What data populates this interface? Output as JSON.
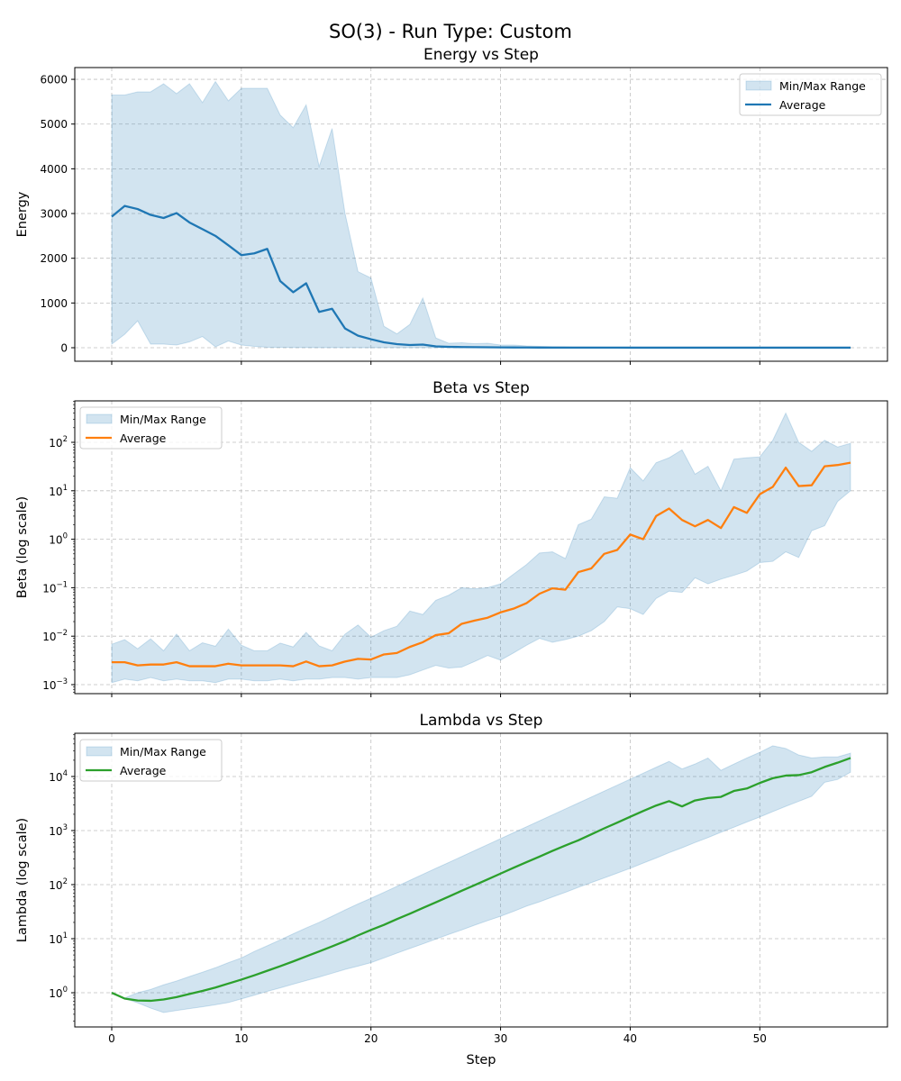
{
  "figure_title": "SO(3) - Run Type: Custom",
  "chart_data": [
    {
      "type": "line",
      "title": "Energy vs Step",
      "xlabel": "",
      "ylabel": "Energy",
      "yscale": "linear",
      "xlim": [
        -2.85,
        59.85
      ],
      "ylim": [
        -302,
        6263
      ],
      "xticks": [
        0,
        10,
        20,
        30,
        40,
        50
      ],
      "show_xtick_labels": false,
      "yticks": [
        0,
        1000,
        2000,
        3000,
        4000,
        5000,
        6000
      ],
      "ytick_labels": [
        "0",
        "1000",
        "2000",
        "3000",
        "4000",
        "5000",
        "6000"
      ],
      "grid": true,
      "legend": {
        "placement": "top-right",
        "entries": [
          "Min/Max Range",
          "Average"
        ]
      },
      "line_color": "#1f77b4",
      "band_color": "#1f77b4",
      "x": [
        0,
        1,
        2,
        3,
        4,
        5,
        6,
        7,
        8,
        9,
        10,
        11,
        12,
        13,
        14,
        15,
        16,
        17,
        18,
        19,
        20,
        21,
        22,
        23,
        24,
        25,
        26,
        27,
        28,
        29,
        30,
        31,
        32,
        33,
        34,
        35,
        36,
        37,
        38,
        39,
        40,
        41,
        42,
        43,
        44,
        45,
        46,
        47,
        48,
        49,
        50,
        51,
        52,
        53,
        54,
        55,
        56,
        57
      ],
      "average": [
        2930,
        3170,
        3100,
        2970,
        2900,
        3010,
        2800,
        2650,
        2500,
        2290,
        2070,
        2110,
        2210,
        1490,
        1240,
        1440,
        800,
        870,
        430,
        270,
        190,
        120,
        80,
        60,
        70,
        30,
        20,
        15,
        12,
        10,
        8,
        6,
        5,
        4,
        3,
        3,
        2,
        2,
        2,
        2,
        1,
        1,
        1,
        1,
        1,
        1,
        1,
        1,
        1,
        1,
        1,
        1,
        1,
        1,
        1,
        1,
        1,
        1
      ],
      "max": [
        5650,
        5650,
        5720,
        5720,
        5900,
        5680,
        5900,
        5480,
        5950,
        5520,
        5800,
        5800,
        5800,
        5200,
        4920,
        5430,
        4050,
        4900,
        3000,
        1700,
        1560,
        480,
        310,
        520,
        1110,
        220,
        100,
        110,
        90,
        100,
        60,
        60,
        40,
        30,
        25,
        22,
        20,
        18,
        16,
        15,
        14,
        13,
        12,
        11,
        10,
        10,
        9,
        9,
        8,
        8,
        7,
        7,
        6,
        6,
        6,
        5,
        5,
        5
      ],
      "min": [
        80,
        300,
        600,
        80,
        80,
        60,
        130,
        250,
        20,
        150,
        60,
        30,
        10,
        10,
        5,
        5,
        3,
        2,
        2,
        1,
        1,
        1,
        1,
        0,
        0,
        0,
        0,
        0,
        0,
        0,
        0,
        0,
        0,
        0,
        0,
        0,
        0,
        0,
        0,
        0,
        0,
        0,
        0,
        0,
        0,
        0,
        0,
        0,
        0,
        0,
        0,
        0,
        0,
        0,
        0,
        0,
        0,
        0
      ]
    },
    {
      "type": "line",
      "title": "Beta vs Step",
      "xlabel": "",
      "ylabel": "Beta (log scale)",
      "yscale": "log",
      "xlim": [
        -2.85,
        59.85
      ],
      "ylim": [
        0.000652,
        716
      ],
      "xticks": [
        0,
        10,
        20,
        30,
        40,
        50
      ],
      "show_xtick_labels": false,
      "ytick_exponents": [
        -3,
        -2,
        -1,
        0,
        1,
        2
      ],
      "ytick_base": "10",
      "grid": true,
      "legend": {
        "placement": "top-left",
        "entries": [
          "Min/Max Range",
          "Average"
        ]
      },
      "line_color": "#ff7f0e",
      "band_color": "#1f77b4",
      "x": [
        0,
        1,
        2,
        3,
        4,
        5,
        6,
        7,
        8,
        9,
        10,
        11,
        12,
        13,
        14,
        15,
        16,
        17,
        18,
        19,
        20,
        21,
        22,
        23,
        24,
        25,
        26,
        27,
        28,
        29,
        30,
        31,
        32,
        33,
        34,
        35,
        36,
        37,
        38,
        39,
        40,
        41,
        42,
        43,
        44,
        45,
        46,
        47,
        48,
        49,
        50,
        51,
        52,
        53,
        54,
        55,
        56,
        57
      ],
      "average": [
        0.0029,
        0.0029,
        0.0025,
        0.0026,
        0.0026,
        0.0029,
        0.0024,
        0.0024,
        0.0024,
        0.0027,
        0.0025,
        0.0025,
        0.0025,
        0.0025,
        0.0024,
        0.003,
        0.0024,
        0.0025,
        0.003,
        0.0034,
        0.0033,
        0.0042,
        0.0045,
        0.006,
        0.0075,
        0.0105,
        0.0115,
        0.018,
        0.021,
        0.024,
        0.031,
        0.037,
        0.048,
        0.075,
        0.097,
        0.091,
        0.21,
        0.25,
        0.5,
        0.6,
        1.25,
        1.0,
        3.0,
        4.3,
        2.5,
        1.85,
        2.5,
        1.7,
        4.6,
        3.5,
        8.5,
        12,
        30,
        12.5,
        13,
        32,
        34,
        38
      ],
      "max": [
        0.0068,
        0.0085,
        0.0055,
        0.0088,
        0.005,
        0.011,
        0.005,
        0.0073,
        0.0062,
        0.014,
        0.0065,
        0.005,
        0.005,
        0.0072,
        0.006,
        0.012,
        0.0063,
        0.005,
        0.011,
        0.017,
        0.0095,
        0.013,
        0.016,
        0.033,
        0.028,
        0.055,
        0.07,
        0.1,
        0.095,
        0.1,
        0.12,
        0.19,
        0.3,
        0.52,
        0.55,
        0.4,
        2,
        2.6,
        7.5,
        7,
        30,
        16,
        38,
        48,
        70,
        22,
        32,
        10,
        45,
        48,
        50,
        110,
        400,
        100,
        65,
        110,
        80,
        95
      ],
      "min": [
        0.0011,
        0.0013,
        0.0012,
        0.0014,
        0.0012,
        0.0013,
        0.0012,
        0.0012,
        0.0011,
        0.0013,
        0.0013,
        0.0012,
        0.0012,
        0.0013,
        0.0012,
        0.0013,
        0.0013,
        0.0014,
        0.0014,
        0.0013,
        0.0014,
        0.0014,
        0.0014,
        0.0016,
        0.002,
        0.0025,
        0.0022,
        0.0023,
        0.003,
        0.004,
        0.0032,
        0.0045,
        0.0065,
        0.009,
        0.0075,
        0.0085,
        0.01,
        0.013,
        0.02,
        0.04,
        0.037,
        0.028,
        0.06,
        0.085,
        0.08,
        0.16,
        0.12,
        0.15,
        0.18,
        0.22,
        0.33,
        0.35,
        0.55,
        0.42,
        1.5,
        1.9,
        6,
        10
      ]
    },
    {
      "type": "line",
      "title": "Lambda vs Step",
      "xlabel": "Step",
      "ylabel": "Lambda (log scale)",
      "yscale": "log",
      "xlim": [
        -2.85,
        59.85
      ],
      "ylim": [
        0.233,
        63000
      ],
      "xticks": [
        0,
        10,
        20,
        30,
        40,
        50
      ],
      "xtick_labels": [
        "0",
        "10",
        "20",
        "30",
        "40",
        "50"
      ],
      "show_xtick_labels": true,
      "ytick_exponents": [
        0,
        1,
        2,
        3,
        4
      ],
      "ytick_base": "10",
      "grid": true,
      "legend": {
        "placement": "top-left",
        "entries": [
          "Min/Max Range",
          "Average"
        ]
      },
      "line_color": "#2ca02c",
      "band_color": "#1f77b4",
      "x": [
        0,
        1,
        2,
        3,
        4,
        5,
        6,
        7,
        8,
        9,
        10,
        11,
        12,
        13,
        14,
        15,
        16,
        17,
        18,
        19,
        20,
        21,
        22,
        23,
        24,
        25,
        26,
        27,
        28,
        29,
        30,
        31,
        32,
        33,
        34,
        35,
        36,
        37,
        38,
        39,
        40,
        41,
        42,
        43,
        44,
        45,
        46,
        47,
        48,
        49,
        50,
        51,
        52,
        53,
        54,
        55,
        56,
        57
      ],
      "average": [
        1.0,
        0.78,
        0.72,
        0.71,
        0.75,
        0.83,
        0.95,
        1.08,
        1.25,
        1.48,
        1.75,
        2.1,
        2.55,
        3.1,
        3.8,
        4.7,
        5.8,
        7.2,
        9,
        11.5,
        14.5,
        18,
        23,
        29,
        37,
        47,
        60,
        77,
        98,
        125,
        160,
        205,
        260,
        330,
        420,
        530,
        660,
        850,
        1100,
        1400,
        1800,
        2300,
        2900,
        3500,
        2800,
        3600,
        4000,
        4200,
        5400,
        6000,
        7600,
        9300,
        10400,
        10600,
        12000,
        15000,
        18000,
        22000
      ],
      "max": [
        1.0,
        0.8,
        1.0,
        1.15,
        1.4,
        1.65,
        2.0,
        2.4,
        2.9,
        3.6,
        4.4,
        5.8,
        7.4,
        9.5,
        12.3,
        15.8,
        20,
        26,
        34,
        44,
        56,
        72,
        93,
        120,
        155,
        200,
        257,
        331,
        427,
        550,
        708,
        912,
        1175,
        1514,
        1950,
        2512,
        3236,
        4169,
        5370,
        6918,
        8913,
        11500,
        14800,
        19000,
        13800,
        17000,
        22000,
        13000,
        17000,
        22000,
        28000,
        37000,
        33000,
        25000,
        22000,
        23000,
        23000,
        27000
      ],
      "min": [
        1.0,
        0.78,
        0.65,
        0.52,
        0.43,
        0.47,
        0.51,
        0.55,
        0.6,
        0.66,
        0.77,
        0.9,
        1.06,
        1.23,
        1.44,
        1.68,
        1.95,
        2.29,
        2.7,
        3.1,
        3.6,
        4.4,
        5.4,
        6.6,
        8,
        9.8,
        12,
        14.5,
        17.8,
        21.6,
        26,
        32,
        40,
        48,
        59,
        72,
        89,
        109,
        133,
        163,
        200,
        250,
        310,
        390,
        480,
        600,
        740,
        930,
        1150,
        1440,
        1780,
        2240,
        2800,
        3470,
        4300,
        7800,
        8800,
        12000
      ]
    }
  ]
}
